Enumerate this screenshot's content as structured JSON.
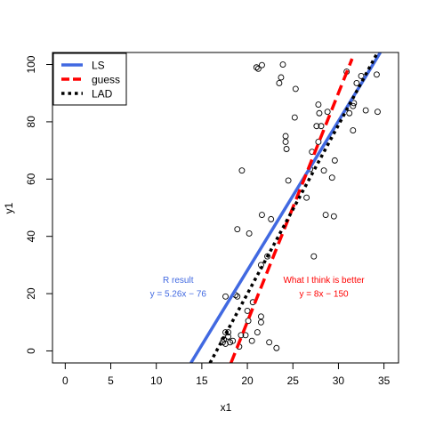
{
  "chart_data": {
    "type": "scatter",
    "title": "",
    "xlabel": "x1",
    "ylabel": "y1",
    "xlim": [
      -1.4,
      36.6
    ],
    "ylim": [
      -4.2,
      104.2
    ],
    "x_ticks": [
      0,
      5,
      10,
      15,
      20,
      25,
      30,
      35
    ],
    "y_ticks": [
      0,
      20,
      40,
      60,
      80,
      100
    ],
    "grid": false,
    "legend_position": "top-left",
    "points": [
      [
        21.0,
        99.0
      ],
      [
        21.2,
        98.5
      ],
      [
        21.6,
        99.8
      ],
      [
        23.9,
        100.0
      ],
      [
        23.7,
        95.5
      ],
      [
        23.5,
        93.5
      ],
      [
        25.3,
        91.5
      ],
      [
        25.2,
        81.5
      ],
      [
        27.8,
        86.0
      ],
      [
        27.9,
        83.0
      ],
      [
        28.8,
        83.5
      ],
      [
        27.6,
        78.5
      ],
      [
        28.1,
        78.5
      ],
      [
        24.2,
        75.0
      ],
      [
        24.2,
        73.0
      ],
      [
        24.3,
        70.5
      ],
      [
        27.8,
        73.0
      ],
      [
        27.1,
        69.5
      ],
      [
        26.9,
        63.5
      ],
      [
        29.6,
        66.5
      ],
      [
        28.4,
        63.0
      ],
      [
        29.3,
        60.5
      ],
      [
        24.5,
        59.5
      ],
      [
        26.5,
        53.5
      ],
      [
        19.4,
        63.0
      ],
      [
        21.6,
        47.5
      ],
      [
        22.6,
        46.0
      ],
      [
        28.6,
        47.5
      ],
      [
        29.5,
        47.0
      ],
      [
        18.9,
        42.5
      ],
      [
        20.2,
        41.0
      ],
      [
        27.3,
        33.0
      ],
      [
        22.2,
        33.0
      ],
      [
        21.5,
        30.0
      ],
      [
        17.6,
        19.0
      ],
      [
        18.7,
        19.5
      ],
      [
        18.9,
        19.0
      ],
      [
        20.6,
        17.0
      ],
      [
        20.0,
        14.0
      ],
      [
        21.5,
        12.0
      ],
      [
        21.5,
        10.0
      ],
      [
        20.1,
        10.5
      ],
      [
        17.6,
        6.5
      ],
      [
        17.9,
        6.5
      ],
      [
        19.3,
        5.5
      ],
      [
        19.8,
        5.5
      ],
      [
        21.1,
        6.5
      ],
      [
        17.9,
        5.0
      ],
      [
        17.4,
        4.0
      ],
      [
        18.1,
        3.0
      ],
      [
        17.6,
        2.5
      ],
      [
        17.3,
        3.0
      ],
      [
        18.4,
        3.5
      ],
      [
        20.5,
        3.5
      ],
      [
        22.4,
        3.0
      ],
      [
        19.1,
        1.5
      ],
      [
        23.2,
        1.0
      ],
      [
        31.7,
        86.5
      ],
      [
        31.6,
        85.5
      ],
      [
        31.2,
        83.0
      ],
      [
        31.6,
        77.0
      ],
      [
        33.0,
        84.0
      ],
      [
        34.3,
        83.5
      ],
      [
        30.9,
        97.5
      ],
      [
        32.0,
        93.5
      ],
      [
        32.5,
        96.0
      ],
      [
        34.2,
        96.5
      ]
    ],
    "series": [
      {
        "name": "LS",
        "color": "#4169e1",
        "style": "solid",
        "lwd": 3.5,
        "from": [
          13.8,
          -4.2
        ],
        "to": [
          34.6,
          104.2
        ]
      },
      {
        "name": "guess",
        "color": "#ff0000",
        "style": "dashed",
        "lwd": 3.5,
        "from": [
          18.2,
          -4.2
        ],
        "to": [
          31.5,
          102.0
        ]
      },
      {
        "name": "LAD",
        "color": "#000000",
        "style": "dotted",
        "lwd": 3.5,
        "from": [
          15.9,
          -4.2
        ],
        "to": [
          34.3,
          104.2
        ]
      }
    ],
    "annotations": [
      {
        "line1": "R result",
        "line2": "y = 5.26x − 76",
        "color": "#4169e1",
        "x": 12.4,
        "y1": 25,
        "y2": 20.2
      },
      {
        "line1": "What I think is better",
        "line2": "y = 8x − 150",
        "color": "#ff0000",
        "x": 28.4,
        "y1": 25,
        "y2": 20.2
      }
    ]
  }
}
